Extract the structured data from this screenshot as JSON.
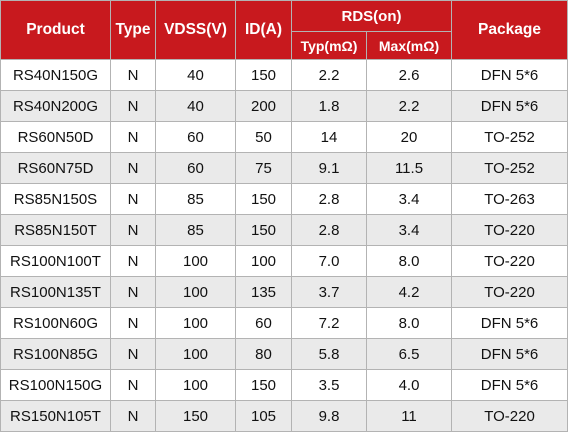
{
  "header": {
    "product": "Product",
    "type": "Type",
    "vdss": "VDSS(V)",
    "id": "ID(A)",
    "rds": "RDS(on)",
    "typ": "Typ(mΩ)",
    "max": "Max(mΩ)",
    "package": "Package"
  },
  "colors": {
    "header_bg": "#c8191e",
    "header_text": "#ffffff",
    "stripe": "#eaeaea"
  },
  "rows": [
    {
      "product": "RS40N150G",
      "type": "N",
      "vdss": "40",
      "id": "150",
      "typ": "2.2",
      "max": "2.6",
      "package": "DFN 5*6"
    },
    {
      "product": "RS40N200G",
      "type": "N",
      "vdss": "40",
      "id": "200",
      "typ": "1.8",
      "max": "2.2",
      "package": "DFN 5*6"
    },
    {
      "product": "RS60N50D",
      "type": "N",
      "vdss": "60",
      "id": "50",
      "typ": "14",
      "max": "20",
      "package": "TO-252"
    },
    {
      "product": "RS60N75D",
      "type": "N",
      "vdss": "60",
      "id": "75",
      "typ": "9.1",
      "max": "11.5",
      "package": "TO-252"
    },
    {
      "product": "RS85N150S",
      "type": "N",
      "vdss": "85",
      "id": "150",
      "typ": "2.8",
      "max": "3.4",
      "package": "TO-263"
    },
    {
      "product": "RS85N150T",
      "type": "N",
      "vdss": "85",
      "id": "150",
      "typ": "2.8",
      "max": "3.4",
      "package": "TO-220"
    },
    {
      "product": "RS100N100T",
      "type": "N",
      "vdss": "100",
      "id": "100",
      "typ": "7.0",
      "max": "8.0",
      "package": "TO-220"
    },
    {
      "product": "RS100N135T",
      "type": "N",
      "vdss": "100",
      "id": "135",
      "typ": "3.7",
      "max": "4.2",
      "package": "TO-220"
    },
    {
      "product": "RS100N60G",
      "type": "N",
      "vdss": "100",
      "id": "60",
      "typ": "7.2",
      "max": "8.0",
      "package": "DFN 5*6"
    },
    {
      "product": "RS100N85G",
      "type": "N",
      "vdss": "100",
      "id": "80",
      "typ": "5.8",
      "max": "6.5",
      "package": "DFN 5*6"
    },
    {
      "product": "RS100N150G",
      "type": "N",
      "vdss": "100",
      "id": "150",
      "typ": "3.5",
      "max": "4.0",
      "package": "DFN 5*6"
    },
    {
      "product": "RS150N105T",
      "type": "N",
      "vdss": "150",
      "id": "105",
      "typ": "9.8",
      "max": "11",
      "package": "TO-220"
    }
  ]
}
